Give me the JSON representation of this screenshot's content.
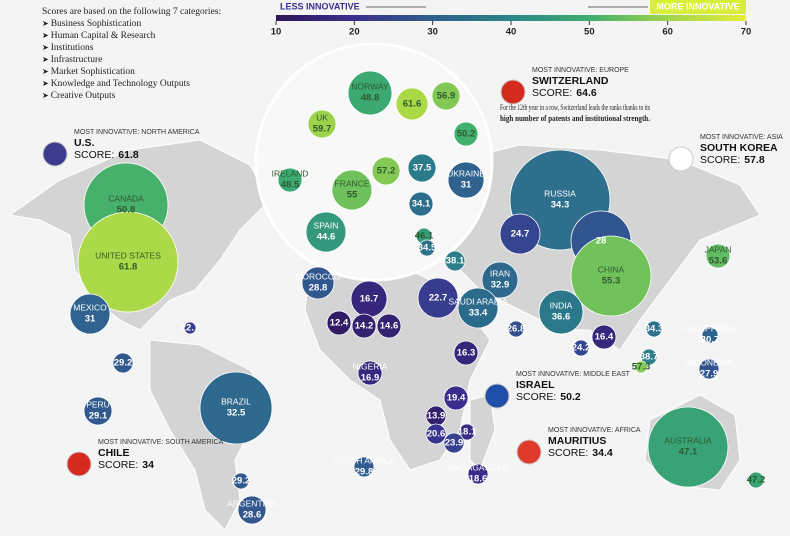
{
  "intro": "Scores are based on the following 7 categories:",
  "categories": [
    "Business Sophistication",
    "Human Capital & Research",
    "Institutions",
    "Infrastructure",
    "Market Sophistication",
    "Knowledge and Technology Outputs",
    "Creative Outputs"
  ],
  "legend": {
    "less_label": "LESS INNOVATIVE",
    "more_label": "MORE INNOVATIVE",
    "xlim": [
      10,
      70
    ],
    "ticks": [
      10,
      20,
      30,
      40,
      50,
      60,
      70
    ],
    "colors": [
      "#2d1659",
      "#3b2f8f",
      "#2f5e8e",
      "#2a8589",
      "#3fae6f",
      "#9fd44a",
      "#e6ef3a"
    ]
  },
  "callouts": [
    {
      "region": "MOST INNOVATIVE: NORTH AMERICA",
      "country": "U.S.",
      "score_label": "SCORE:",
      "score": 61.8
    },
    {
      "region": "MOST INNOVATIVE: EUROPE",
      "country": "SWITZERLAND",
      "score_label": "SCORE:",
      "score": 64.6,
      "note": "For the 12th year in a row, Switzerland leads the ranks thanks to its",
      "note_bold": "high number of patents and institutional strength."
    },
    {
      "region": "MOST INNOVATIVE: ASIA",
      "country": "SOUTH KOREA",
      "score_label": "SCORE:",
      "score": 57.8
    },
    {
      "region": "MOST INNOVATIVE: MIDDLE EAST",
      "country": "ISRAEL",
      "score_label": "SCORE:",
      "score": 50.2
    },
    {
      "region": "MOST INNOVATIVE: AFRICA",
      "country": "MAURITIUS",
      "score_label": "SCORE:",
      "score": 34.4
    },
    {
      "region": "MOST INNOVATIVE: SOUTH AMERICA",
      "country": "CHILE",
      "score_label": "SCORE:",
      "score": 34.0
    }
  ],
  "countries": [
    {
      "name": "NORWAY",
      "value": 48.8
    },
    {
      "value": 61.6
    },
    {
      "value": 56.9
    },
    {
      "name": "UK",
      "value": 59.7
    },
    {
      "value": 50.2
    },
    {
      "value": 57.2
    },
    {
      "value": 37.5
    },
    {
      "name": "IRELAND",
      "value": 48.5
    },
    {
      "name": "FRANCE",
      "value": 55
    },
    {
      "name": "UKRAINE",
      "value": 31
    },
    {
      "value": 34.1
    },
    {
      "name": "CANADA",
      "value": 50.8
    },
    {
      "name": "RUSSIA",
      "value": 34.3
    },
    {
      "name": "SPAIN",
      "value": 44.6
    },
    {
      "value": 46.1
    },
    {
      "value": 24.7
    },
    {
      "value": 28
    },
    {
      "value": 34.5
    },
    {
      "name": "JAPAN",
      "value": 53.6
    },
    {
      "name": "UNITED STATES",
      "value": 61.8
    },
    {
      "value": 38.1
    },
    {
      "name": "CHINA",
      "value": 55.3
    },
    {
      "name": "IRAN",
      "value": 32.9
    },
    {
      "name": "MOROCCO",
      "value": 28.8
    },
    {
      "value": 16.7
    },
    {
      "value": 22.7
    },
    {
      "name": "SAUDI ARABIA",
      "value": 33.4
    },
    {
      "name": "INDIA",
      "value": 36.6
    },
    {
      "name": "MEXICO",
      "value": 31
    },
    {
      "value": 12.4
    },
    {
      "value": 14.2
    },
    {
      "value": 14.6
    },
    {
      "value": 22.7
    },
    {
      "value": 26.8
    },
    {
      "value": 34.3
    },
    {
      "name": "PHILIPPINES",
      "value": 30.7
    },
    {
      "value": 16.4
    },
    {
      "value": 24.2
    },
    {
      "value": 16.3
    },
    {
      "value": 38.7
    },
    {
      "value": 29.2
    },
    {
      "name": "INDONESIA",
      "value": 27.9
    },
    {
      "name": "NIGERIA",
      "value": 16.9
    },
    {
      "value": 57.3
    },
    {
      "name": "PERU",
      "value": 29.1
    },
    {
      "name": "BRAZIL",
      "value": 32.5
    },
    {
      "value": 19.4
    },
    {
      "value": 13.9
    },
    {
      "name": "AUSTRALIA",
      "value": 47.1
    },
    {
      "value": 20.6
    },
    {
      "value": 18.1
    },
    {
      "value": 23.9
    },
    {
      "name": "SOUTH AFRICA",
      "value": 29.8
    },
    {
      "name": "MADAGASCAR",
      "value": 18.6
    },
    {
      "value": 29.2
    },
    {
      "name": "ARGENTINA",
      "value": 28.6
    },
    {
      "value": 47.2
    }
  ]
}
